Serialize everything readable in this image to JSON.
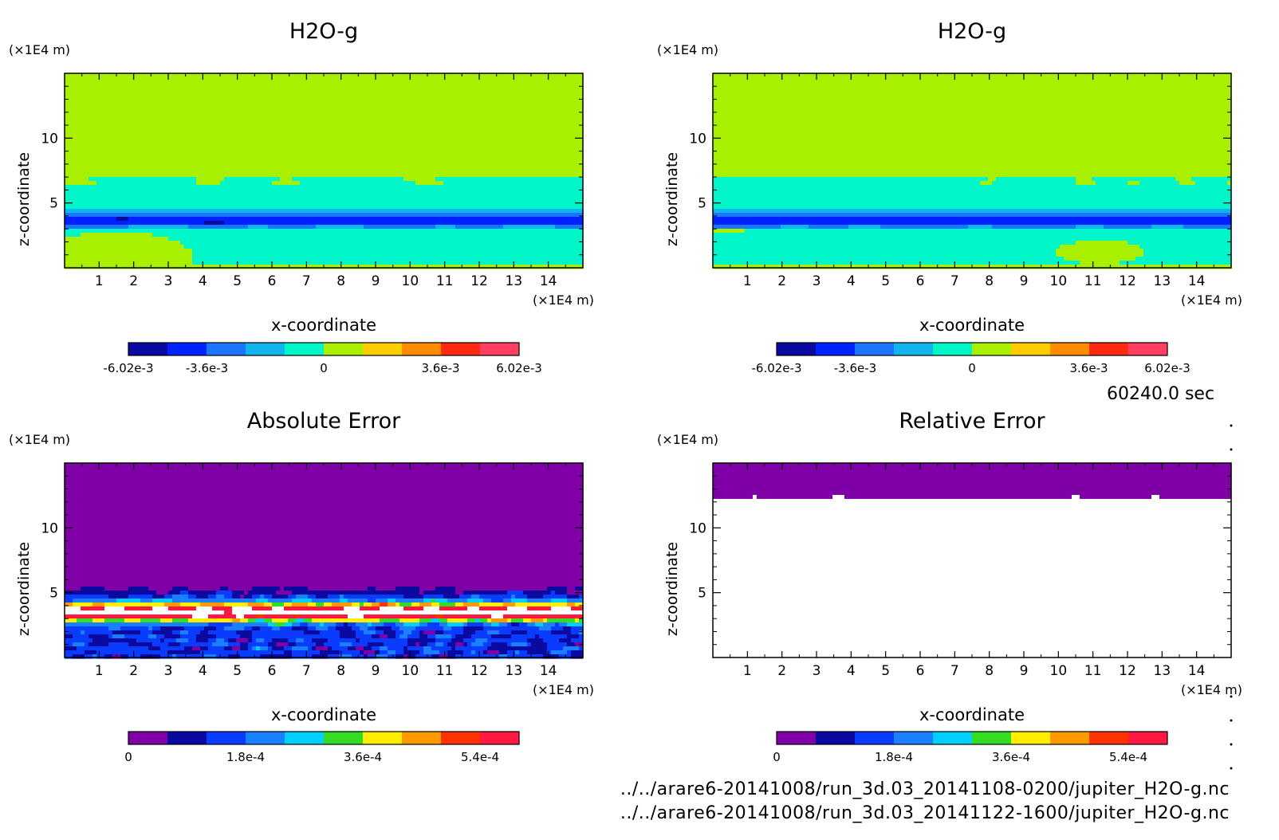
{
  "chart_data": [
    {
      "type": "heatmap",
      "title": "H2O-g",
      "xlabel": "x-coordinate",
      "ylabel": "z-coordinate",
      "x_unit": "(×1E4 m)",
      "y_unit": "(×1E4 m)",
      "xlim": [
        0,
        15
      ],
      "ylim": [
        0,
        15
      ],
      "x_ticks": [
        1,
        2,
        3,
        4,
        5,
        6,
        7,
        8,
        9,
        10,
        11,
        12,
        13,
        14
      ],
      "y_ticks": [
        5,
        10
      ],
      "colorbar": {
        "colors": [
          "#0a0aa0",
          "#0022ff",
          "#1a75ff",
          "#11b4ee",
          "#00f5c8",
          "#a8f000",
          "#ffcc00",
          "#ff8c00",
          "#ff2a10",
          "#ff4060"
        ],
        "tick_labels": [
          "-6.02e-3",
          "-3.6e-3",
          "0",
          "3.6e-3",
          "6.02e-3"
        ],
        "tick_values": [
          -0.00602,
          -0.0036,
          0,
          0.0036,
          0.00602
        ],
        "range": [
          -0.00602,
          0.00602
        ]
      }
    },
    {
      "type": "heatmap",
      "title": "H2O-g",
      "xlabel": "x-coordinate",
      "ylabel": "z-coordinate",
      "x_unit": "(×1E4 m)",
      "y_unit": "(×1E4 m)",
      "xlim": [
        0,
        15
      ],
      "ylim": [
        0,
        15
      ],
      "x_ticks": [
        1,
        2,
        3,
        4,
        5,
        6,
        7,
        8,
        9,
        10,
        11,
        12,
        13,
        14
      ],
      "y_ticks": [
        5,
        10
      ],
      "colorbar": {
        "colors": [
          "#0a0aa0",
          "#0022ff",
          "#1a75ff",
          "#11b4ee",
          "#00f5c8",
          "#a8f000",
          "#ffcc00",
          "#ff8c00",
          "#ff2a10",
          "#ff4060"
        ],
        "tick_labels": [
          "-6.02e-3",
          "-3.6e-3",
          "0",
          "3.6e-3",
          "6.02e-3"
        ],
        "tick_values": [
          -0.00602,
          -0.0036,
          0,
          0.0036,
          0.00602
        ],
        "range": [
          -0.00602,
          0.00602
        ]
      }
    },
    {
      "type": "heatmap",
      "title": "Absolute Error",
      "xlabel": "x-coordinate",
      "ylabel": "z-coordinate",
      "x_unit": "(×1E4 m)",
      "y_unit": "(×1E4 m)",
      "xlim": [
        0,
        15
      ],
      "ylim": [
        0,
        15
      ],
      "x_ticks": [
        1,
        2,
        3,
        4,
        5,
        6,
        7,
        8,
        9,
        10,
        11,
        12,
        13,
        14
      ],
      "y_ticks": [
        5,
        10
      ],
      "colorbar": {
        "colors": [
          "#8000a8",
          "#0a0aa0",
          "#0a3cff",
          "#1a80ff",
          "#00cfff",
          "#33dd22",
          "#ffee00",
          "#ff9900",
          "#ff3300",
          "#ff1840"
        ],
        "tick_labels": [
          "0",
          "1.8e-4",
          "3.6e-4",
          "5.4e-4"
        ],
        "tick_values": [
          0,
          0.00018,
          0.00036,
          0.00054
        ],
        "range": [
          0,
          0.0006
        ]
      }
    },
    {
      "type": "heatmap",
      "title": "Relative Error",
      "xlabel": "x-coordinate",
      "ylabel": "z-coordinate",
      "x_unit": "(×1E4 m)",
      "y_unit": "(×1E4 m)",
      "xlim": [
        0,
        15
      ],
      "ylim": [
        0,
        15
      ],
      "x_ticks": [
        1,
        2,
        3,
        4,
        5,
        6,
        7,
        8,
        9,
        10,
        11,
        12,
        13,
        14
      ],
      "y_ticks": [
        5,
        10
      ],
      "colorbar": {
        "colors": [
          "#8000a8",
          "#0a0aa0",
          "#0a3cff",
          "#1a80ff",
          "#00cfff",
          "#33dd22",
          "#ffee00",
          "#ff9900",
          "#ff3300",
          "#ff1840"
        ],
        "tick_labels": [
          "0",
          "1.8e-4",
          "3.6e-4",
          "5.4e-4"
        ],
        "tick_values": [
          0,
          0.00018,
          0.00036,
          0.00054
        ],
        "range": [
          0,
          0.0006
        ]
      }
    }
  ],
  "time_label": "60240.0 sec",
  "file_paths": [
    "../../arare6-20141008/run_3d.03_20141108-0200/jupiter_H2O-g.nc",
    "../../arare6-20141008/run_3d.03_20141122-1600/jupiter_H2O-g.nc"
  ]
}
